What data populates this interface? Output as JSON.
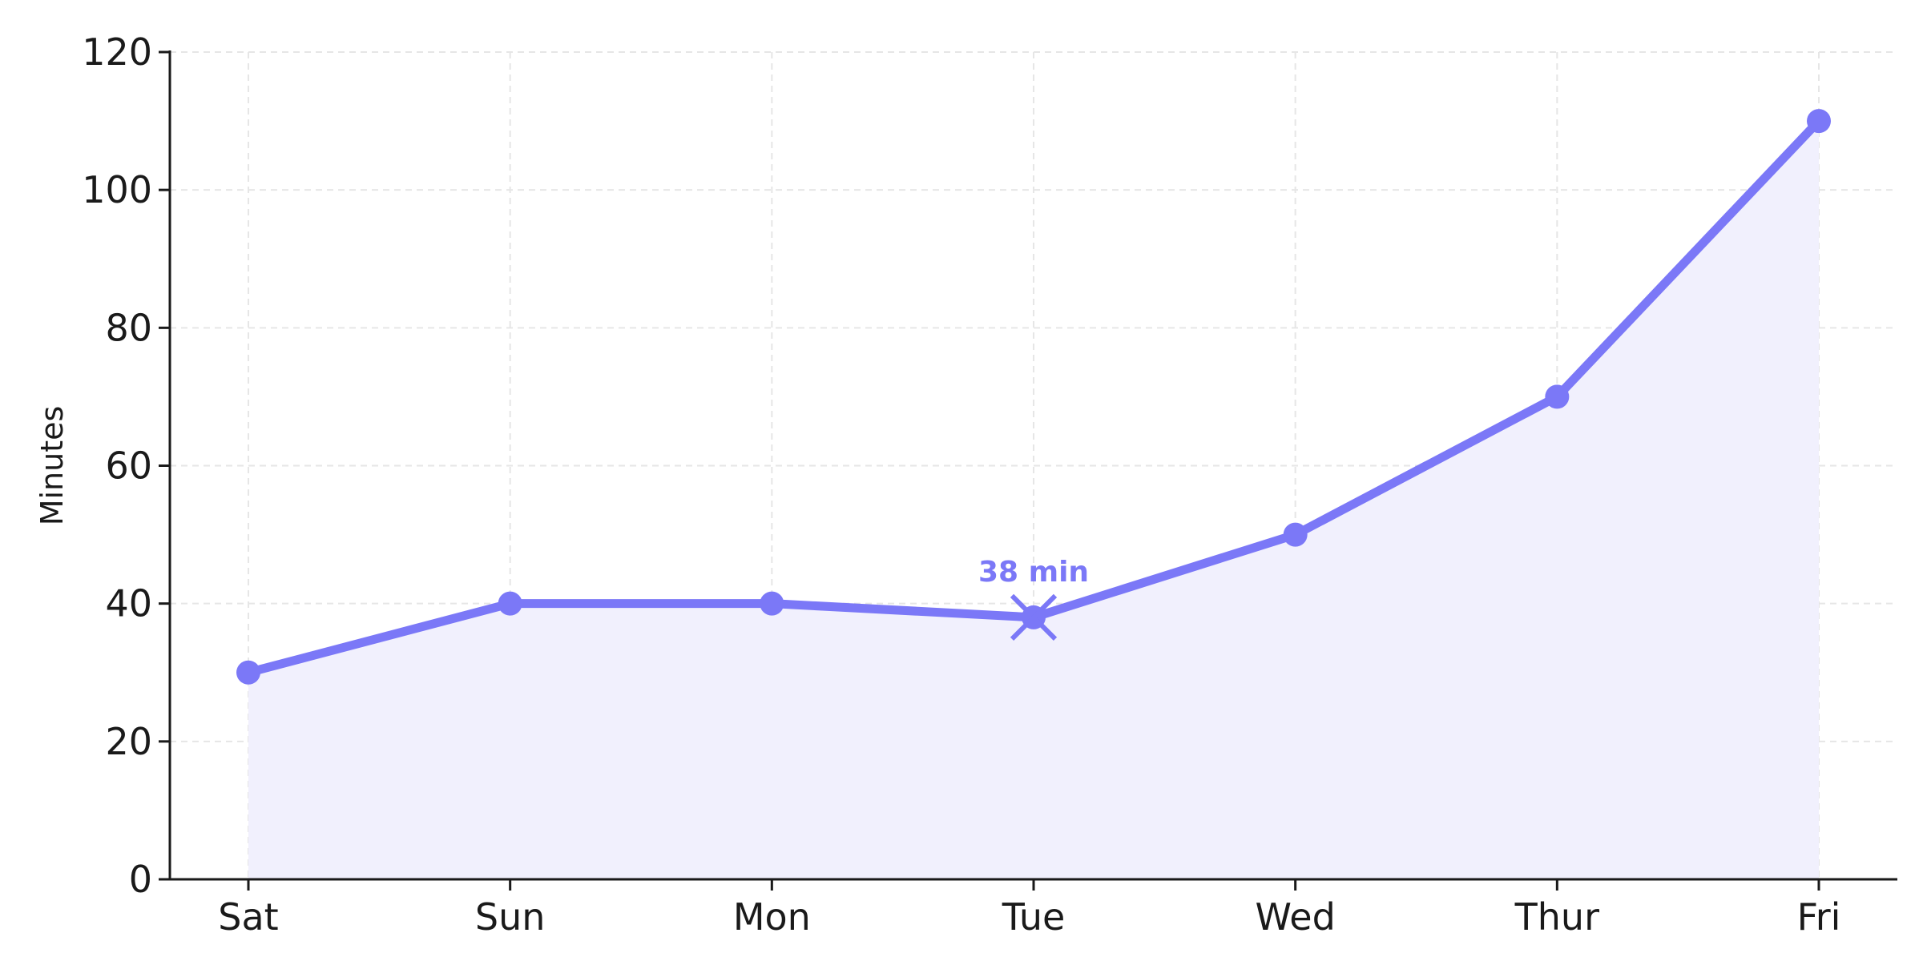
{
  "chart_data": {
    "type": "line",
    "title": "",
    "xlabel": "",
    "ylabel": "Minutes",
    "categories": [
      "Sat",
      "Sun",
      "Mon",
      "Tue",
      "Wed",
      "Thur",
      "Fri"
    ],
    "series": [
      {
        "values": [
          30,
          40,
          40,
          38,
          50,
          70,
          110
        ]
      }
    ],
    "ylim": [
      0,
      120
    ],
    "yticks": [
      0,
      20,
      40,
      60,
      80,
      100,
      120
    ],
    "grid": true,
    "area_fill": true,
    "highlight": {
      "category": "Tue",
      "value": 38,
      "label": "38 min",
      "marker": "x"
    },
    "colors": {
      "line": "#7b78f7",
      "fill": "#f1f0fd",
      "grid": "#e6e6e6",
      "axis": "#1a1a1a"
    }
  }
}
